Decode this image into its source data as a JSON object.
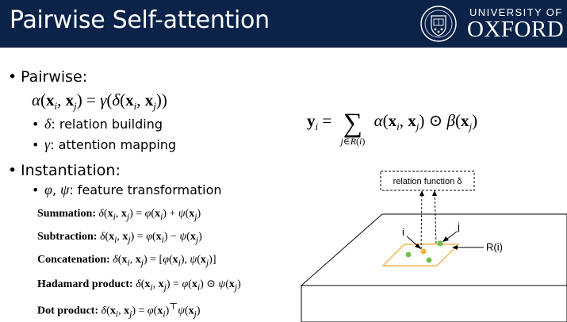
{
  "slide": {
    "title": "Pairwise Self-attention"
  },
  "logo": {
    "line1": "UNIVERSITY OF",
    "line2": "OXFORD"
  },
  "bullets": {
    "pairwise": "Pairwise:",
    "relation": ": relation building",
    "attention": ": attention mapping",
    "instantiation": "Instantiation:",
    "feature": ": feature transformation"
  },
  "equations": [
    {
      "label": "Summation:"
    },
    {
      "label": "Subtraction:"
    },
    {
      "label": "Concatenation:"
    },
    {
      "label": "Hadamard product:"
    },
    {
      "label": "Dot product:"
    }
  ],
  "diagram": {
    "box_label": "relation function δ",
    "label_i": "i",
    "label_j": "j",
    "label_region": "R(i)"
  },
  "colors": {
    "header_bg": "#0b2249",
    "point_green": "#6dc04a",
    "point_orange": "#f0b43c",
    "region_border": "#f0a830"
  }
}
